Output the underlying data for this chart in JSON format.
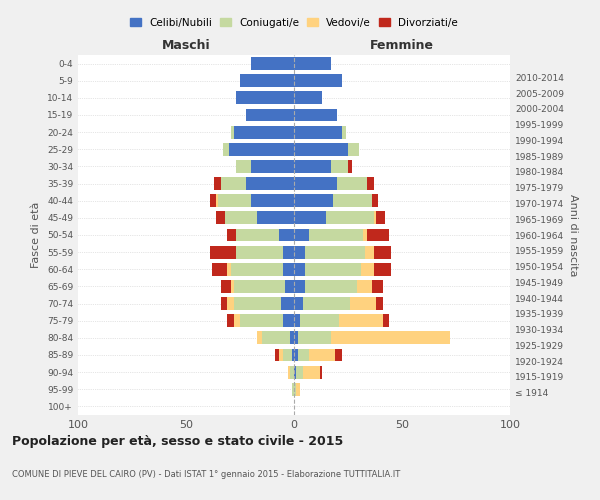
{
  "age_groups": [
    "100+",
    "95-99",
    "90-94",
    "85-89",
    "80-84",
    "75-79",
    "70-74",
    "65-69",
    "60-64",
    "55-59",
    "50-54",
    "45-49",
    "40-44",
    "35-39",
    "30-34",
    "25-29",
    "20-24",
    "15-19",
    "10-14",
    "5-9",
    "0-4"
  ],
  "birth_years": [
    "≤ 1914",
    "1915-1919",
    "1920-1924",
    "1925-1929",
    "1930-1934",
    "1935-1939",
    "1940-1944",
    "1945-1949",
    "1950-1954",
    "1955-1959",
    "1960-1964",
    "1965-1969",
    "1970-1974",
    "1975-1979",
    "1980-1984",
    "1985-1989",
    "1990-1994",
    "1995-1999",
    "2000-2004",
    "2005-2009",
    "2010-2014"
  ],
  "maschi": {
    "celibi": [
      0,
      0,
      0,
      1,
      2,
      5,
      6,
      4,
      5,
      5,
      7,
      17,
      20,
      22,
      20,
      30,
      28,
      22,
      27,
      25,
      20
    ],
    "coniugati": [
      0,
      1,
      2,
      4,
      13,
      20,
      22,
      24,
      24,
      22,
      20,
      15,
      15,
      12,
      7,
      3,
      1,
      0,
      0,
      0,
      0
    ],
    "vedovi": [
      0,
      0,
      1,
      2,
      2,
      3,
      3,
      1,
      2,
      0,
      0,
      0,
      1,
      0,
      0,
      0,
      0,
      0,
      0,
      0,
      0
    ],
    "divorziati": [
      0,
      0,
      0,
      2,
      0,
      3,
      3,
      5,
      7,
      12,
      4,
      4,
      3,
      3,
      0,
      0,
      0,
      0,
      0,
      0,
      0
    ]
  },
  "femmine": {
    "nubili": [
      0,
      0,
      1,
      2,
      2,
      3,
      4,
      5,
      5,
      5,
      7,
      15,
      18,
      20,
      17,
      25,
      22,
      20,
      13,
      22,
      17
    ],
    "coniugate": [
      0,
      1,
      3,
      5,
      15,
      18,
      22,
      24,
      26,
      28,
      25,
      22,
      18,
      14,
      8,
      5,
      2,
      0,
      0,
      0,
      0
    ],
    "vedove": [
      0,
      2,
      8,
      12,
      55,
      20,
      12,
      7,
      6,
      4,
      2,
      1,
      0,
      0,
      0,
      0,
      0,
      0,
      0,
      0,
      0
    ],
    "divorziate": [
      0,
      0,
      1,
      3,
      0,
      3,
      3,
      5,
      8,
      8,
      10,
      4,
      3,
      3,
      2,
      0,
      0,
      0,
      0,
      0,
      0
    ]
  },
  "colors": {
    "celibi": "#4472c4",
    "coniugati": "#c5d9a0",
    "vedovi": "#ffd27f",
    "divorziati": "#c0281c"
  },
  "xlim": 100,
  "title": "Popolazione per età, sesso e stato civile - 2015",
  "subtitle": "COMUNE DI PIEVE DEL CAIRO (PV) - Dati ISTAT 1° gennaio 2015 - Elaborazione TUTTITALIA.IT",
  "ylabel": "Fasce di età",
  "ylabel2": "Anni di nascita",
  "xlabel_maschi": "Maschi",
  "xlabel_femmine": "Femmine",
  "legend_labels": [
    "Celibi/Nubili",
    "Coniugati/e",
    "Vedovi/e",
    "Divorziati/e"
  ],
  "bg_color": "#f0f0f0",
  "plot_bg": "#ffffff"
}
